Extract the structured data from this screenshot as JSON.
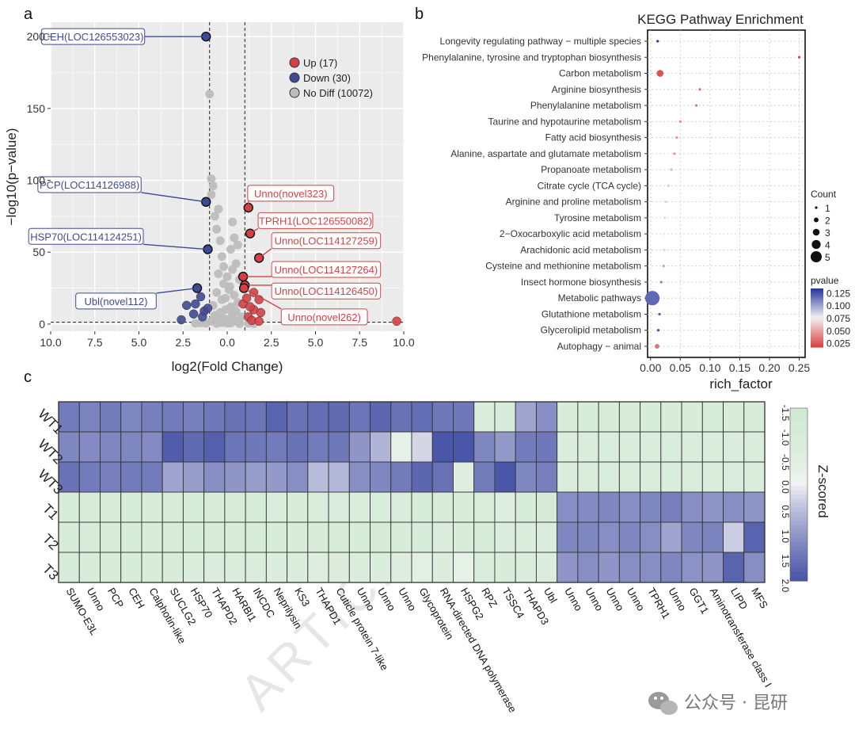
{
  "panel_labels": {
    "a": "a",
    "b": "b",
    "c": "c"
  },
  "watermark": "ARTICLE",
  "wechat": {
    "text": "公众号 · 昆研",
    "icon": "wechat-icon"
  },
  "colors": {
    "up": "#d64045",
    "down": "#3f4a94",
    "nodiff": "#bdbdbd",
    "heat_low": "#4a56a8",
    "heat_mid": "#f6f6f6",
    "heat_high": "#cfe9d2"
  },
  "chart_data": [
    {
      "type": "scatter",
      "name": "volcano",
      "xlabel": "log2(Fold Change)",
      "ylabel": "−log10(p−value)",
      "xticks": [
        -10.0,
        -7.5,
        -5.0,
        -2.5,
        0.0,
        2.5,
        5.0,
        7.5,
        10.0
      ],
      "xtick_labels": [
        "10.0",
        "7.5",
        "5.0",
        "2.5",
        "0.0",
        "2.5",
        "5.0",
        "7.5",
        "10.0"
      ],
      "yticks": [
        0,
        50,
        100,
        150,
        200
      ],
      "xlim": [
        -10,
        10
      ],
      "ylim": [
        -5,
        210
      ],
      "thresholds": {
        "x": [
          -1,
          1
        ],
        "y": 1.3
      },
      "legend": [
        {
          "label": "Up (17)",
          "class": "up"
        },
        {
          "label": "Down (30)",
          "class": "down"
        },
        {
          "label": "No Diff (10072)",
          "class": "nodiff"
        }
      ],
      "series": [
        {
          "class": "up",
          "points": [
            [
              1.2,
              81
            ],
            [
              1.3,
              63
            ],
            [
              1.8,
              46
            ],
            [
              0.9,
              33
            ],
            [
              1.0,
              27
            ],
            [
              0.95,
              25
            ],
            [
              1.5,
              22
            ],
            [
              1.8,
              17
            ],
            [
              1.5,
              10
            ],
            [
              1.9,
              8
            ],
            [
              1.2,
              5
            ],
            [
              1.4,
              2.5
            ],
            [
              1.8,
              2
            ],
            [
              9.6,
              2
            ],
            [
              0.9,
              14
            ],
            [
              1.1,
              18
            ],
            [
              1.3,
              12
            ]
          ]
        },
        {
          "class": "down",
          "points": [
            [
              -1.2,
              200
            ],
            [
              -1.2,
              85
            ],
            [
              -1.1,
              52
            ],
            [
              -1.7,
              25
            ],
            [
              -2.3,
              13
            ],
            [
              -1.9,
              7
            ],
            [
              -2.6,
              3
            ],
            [
              -1.5,
              19
            ],
            [
              -1.3,
              9
            ],
            [
              -1.8,
              14
            ],
            [
              -1.1,
              11
            ],
            [
              -1.4,
              5
            ]
          ]
        },
        {
          "class": "nodiff",
          "points": [
            [
              -1.0,
              160
            ],
            [
              -0.9,
              101
            ],
            [
              -0.8,
              96
            ],
            [
              -0.9,
              90
            ],
            [
              -0.5,
              80
            ],
            [
              -0.7,
              75
            ],
            [
              -0.6,
              66
            ],
            [
              0.3,
              71
            ],
            [
              0.4,
              60
            ],
            [
              0.6,
              55
            ],
            [
              -0.4,
              58
            ],
            [
              0.2,
              52
            ],
            [
              -0.3,
              47
            ],
            [
              0.5,
              42
            ],
            [
              0.3,
              38
            ],
            [
              -0.5,
              35
            ],
            [
              0.7,
              31
            ],
            [
              -0.2,
              28
            ],
            [
              0.1,
              24
            ],
            [
              -0.6,
              22
            ],
            [
              0.4,
              20
            ],
            [
              -0.3,
              17
            ],
            [
              0.6,
              15
            ],
            [
              -0.8,
              13
            ],
            [
              0.2,
              12
            ],
            [
              -0.1,
              10
            ],
            [
              0.5,
              9
            ],
            [
              -0.4,
              8
            ],
            [
              0.3,
              7
            ],
            [
              -0.7,
              6
            ],
            [
              0.8,
              5
            ],
            [
              -0.2,
              4
            ],
            [
              0.1,
              3.5
            ],
            [
              -0.5,
              3
            ],
            [
              0.4,
              2.5
            ],
            [
              -0.9,
              2
            ],
            [
              0.6,
              1.5
            ],
            [
              -0.3,
              1
            ],
            [
              0.2,
              0.8
            ],
            [
              0.0,
              0.5
            ],
            [
              -0.6,
              0.4
            ],
            [
              0.7,
              0.3
            ],
            [
              -1.2,
              0.5
            ],
            [
              -1.5,
              0.8
            ],
            [
              -1.8,
              0.5
            ],
            [
              1.2,
              0.5
            ],
            [
              1.5,
              0.3
            ],
            [
              -0.1,
              18
            ],
            [
              0.0,
              33
            ],
            [
              -0.2,
              40
            ],
            [
              0.15,
              26
            ]
          ]
        }
      ],
      "annotations": [
        {
          "label": "CEH(LOC126553023)",
          "class": "down",
          "point": [
            -1.2,
            200
          ],
          "box": [
            -7.6,
            200
          ]
        },
        {
          "label": "PCP(LOC114126988)",
          "class": "down",
          "point": [
            -1.2,
            85
          ],
          "box": [
            -7.8,
            97
          ]
        },
        {
          "label": "HSP70(LOC114124251)",
          "class": "down",
          "point": [
            -1.1,
            52
          ],
          "box": [
            -8.0,
            61
          ]
        },
        {
          "label": "Ubl(novel112)",
          "class": "down",
          "point": [
            -1.7,
            25
          ],
          "box": [
            -6.3,
            16
          ]
        },
        {
          "label": "Unno(novel323)",
          "class": "up",
          "point": [
            1.2,
            81
          ],
          "box": [
            3.6,
            91
          ]
        },
        {
          "label": "TPRH1(LOC126550082)",
          "class": "up",
          "point": [
            1.3,
            63
          ],
          "box": [
            5.0,
            72
          ]
        },
        {
          "label": "Unno(LOC114127259)",
          "class": "up",
          "point": [
            1.8,
            46
          ],
          "box": [
            5.6,
            58
          ]
        },
        {
          "label": "Unno(LOC114127264)",
          "class": "up",
          "point": [
            0.9,
            33
          ],
          "box": [
            5.6,
            38
          ]
        },
        {
          "label": "Unno(LOC114126450)",
          "class": "up",
          "point": [
            1.0,
            27
          ],
          "box": [
            5.6,
            23
          ]
        },
        {
          "label": "Unno(novel262)",
          "class": "up",
          "point": [
            0.95,
            25
          ],
          "box": [
            5.5,
            5
          ]
        }
      ]
    },
    {
      "type": "scatter",
      "name": "kegg_enrichment",
      "title": "KEGG Pathway Enrichment",
      "xlabel": "rich_factor",
      "xticks": [
        0.0,
        0.05,
        0.1,
        0.15,
        0.2,
        0.25
      ],
      "xtick_labels": [
        "0.00",
        "0.05",
        "0.10",
        "0.15",
        "0.20",
        "0.25"
      ],
      "xlim": [
        -0.005,
        0.26
      ],
      "categories": [
        "Longevity regulating pathway − multiple species",
        "Phenylalanine, tyrosine and tryptophan biosynthesis",
        "Carbon metabolism",
        "Arginine biosynthesis",
        "Phenylalanine metabolism",
        "Taurine and hypotaurine metabolism",
        "Fatty acid biosynthesis",
        "Alanine, aspartate and glutamate metabolism",
        "Propanoate metabolism",
        "Citrate cycle (TCA cycle)",
        "Arginine and proline metabolism",
        "Tyrosine metabolism",
        "2−Oxocarboxylic acid metabolism",
        "Arachidonic acid metabolism",
        "Cysteine and methionine metabolism",
        "Insect hormone biosynthesis",
        "Metabolic pathways",
        "Glutathione metabolism",
        "Glycerolipid metabolism",
        "Autophagy − animal"
      ],
      "rich_factor": [
        0.012,
        0.25,
        0.016,
        0.083,
        0.077,
        0.05,
        0.044,
        0.04,
        0.035,
        0.03,
        0.026,
        0.024,
        0.023,
        0.023,
        0.022,
        0.018,
        0.003,
        0.015,
        0.013,
        0.011
      ],
      "count": [
        1,
        1,
        3,
        1,
        1,
        1,
        1,
        1,
        1,
        1,
        1,
        1,
        1,
        1,
        1,
        1,
        5,
        1,
        1,
        2
      ],
      "pvalue": [
        0.135,
        0.018,
        0.022,
        0.03,
        0.032,
        0.042,
        0.045,
        0.048,
        0.055,
        0.062,
        0.065,
        0.068,
        0.072,
        0.085,
        0.1,
        0.11,
        0.12,
        0.125,
        0.128,
        0.035
      ],
      "legend_count": {
        "title": "Count",
        "values": [
          1,
          2,
          3,
          4,
          5
        ]
      },
      "legend_pvalue": {
        "title": "pvalue",
        "ticks": [
          "0.125",
          "0.100",
          "0.075",
          "0.050",
          "0.025"
        ],
        "range": [
          0.018,
          0.135
        ]
      }
    },
    {
      "type": "heatmap",
      "name": "zscore_heatmap",
      "rows": [
        "WT1",
        "WT2",
        "WT3",
        "T1",
        "T2",
        "T3"
      ],
      "columns": [
        "SUMO-E3L",
        "Unno",
        "PCP",
        "CEH",
        "Calphotin-like",
        "SUCLG2",
        "HSP70",
        "THAPD2",
        "HARBI1",
        "INCDC",
        "Neprilysin",
        "KS3",
        "THAPD1",
        "Cuticle protein 7-like",
        "Unno",
        "Unno",
        "Unno",
        "Glycoprotein",
        "RNA-directed DNA polymerase",
        "HSPG2",
        "RPZ",
        "TSSC4",
        "THAPD3",
        "Ubl",
        "Unno",
        "Unno",
        "Unno",
        "Unno",
        "TPRH1",
        "Unno",
        "GGT1",
        "Aminotransferase class I",
        "LIPD",
        "MFS"
      ],
      "values": [
        [
          1.45,
          1.35,
          1.45,
          1.3,
          1.4,
          1.45,
          1.4,
          1.5,
          1.6,
          1.55,
          1.8,
          1.6,
          1.65,
          1.7,
          1.55,
          1.75,
          1.6,
          1.65,
          1.5,
          1.5,
          -0.7,
          -1.0,
          0.9,
          1.2,
          -0.9,
          -0.9,
          -0.9,
          -0.9,
          -0.9,
          -0.9,
          -0.9,
          -0.9,
          -0.9,
          -0.9
        ],
        [
          1.3,
          1.25,
          1.3,
          1.3,
          1.25,
          1.9,
          1.7,
          1.85,
          1.55,
          1.5,
          1.45,
          1.6,
          1.45,
          1.5,
          1.1,
          0.7,
          -0.3,
          0.3,
          2.0,
          2.0,
          1.3,
          1.05,
          1.45,
          1.5,
          -0.8,
          -0.8,
          -0.8,
          -0.8,
          -0.8,
          -0.8,
          -0.8,
          -0.8,
          -0.8,
          -0.8
        ],
        [
          1.6,
          1.45,
          1.4,
          1.45,
          1.45,
          0.9,
          1.0,
          1.2,
          1.1,
          1.0,
          1.05,
          1.2,
          0.6,
          0.65,
          1.2,
          1.3,
          1.45,
          1.75,
          1.6,
          -0.5,
          1.45,
          2.0,
          1.3,
          1.4,
          -0.8,
          -0.8,
          -0.8,
          -0.8,
          -0.8,
          -0.8,
          -0.8,
          -0.8,
          -0.8,
          -0.8
        ],
        [
          -0.9,
          -0.9,
          -0.9,
          -0.9,
          -0.9,
          -0.9,
          -0.9,
          -0.9,
          -1.0,
          -0.9,
          -0.8,
          -0.9,
          -0.8,
          -0.8,
          -0.7,
          -0.8,
          -0.8,
          -0.9,
          -0.9,
          -0.9,
          -0.8,
          -0.6,
          -1.0,
          -1.1,
          1.2,
          1.25,
          1.3,
          1.2,
          1.3,
          1.4,
          1.2,
          1.1,
          1.2,
          1.1
        ],
        [
          -0.9,
          -0.9,
          -0.9,
          -0.95,
          -0.9,
          -0.9,
          -0.9,
          -0.95,
          -0.9,
          -0.9,
          -0.9,
          -0.95,
          -0.9,
          -0.95,
          -0.95,
          -1.05,
          -0.9,
          -1.0,
          -0.8,
          -0.9,
          -0.9,
          -0.8,
          -0.8,
          -0.8,
          1.3,
          1.3,
          1.2,
          1.3,
          1.2,
          0.9,
          1.3,
          1.35,
          0.4,
          1.8
        ],
        [
          -1.0,
          -0.9,
          -0.9,
          -0.9,
          -0.9,
          -0.9,
          -0.8,
          -0.8,
          -0.8,
          -0.7,
          -0.7,
          -0.7,
          -0.6,
          -0.65,
          -0.7,
          -0.7,
          -0.6,
          -0.4,
          -0.7,
          -0.3,
          -0.7,
          -0.9,
          -0.8,
          -0.7,
          1.1,
          1.2,
          1.1,
          1.2,
          1.2,
          1.3,
          1.15,
          1.1,
          1.8,
          1.2
        ]
      ],
      "colorbar": {
        "title": "Z-scored",
        "ticks": [
          "-1.5",
          "-1.0",
          "-0.5",
          "0.0",
          "0.5",
          "1.0",
          "1.5",
          "2.0"
        ],
        "range": [
          -1.5,
          2.0
        ]
      }
    }
  ]
}
